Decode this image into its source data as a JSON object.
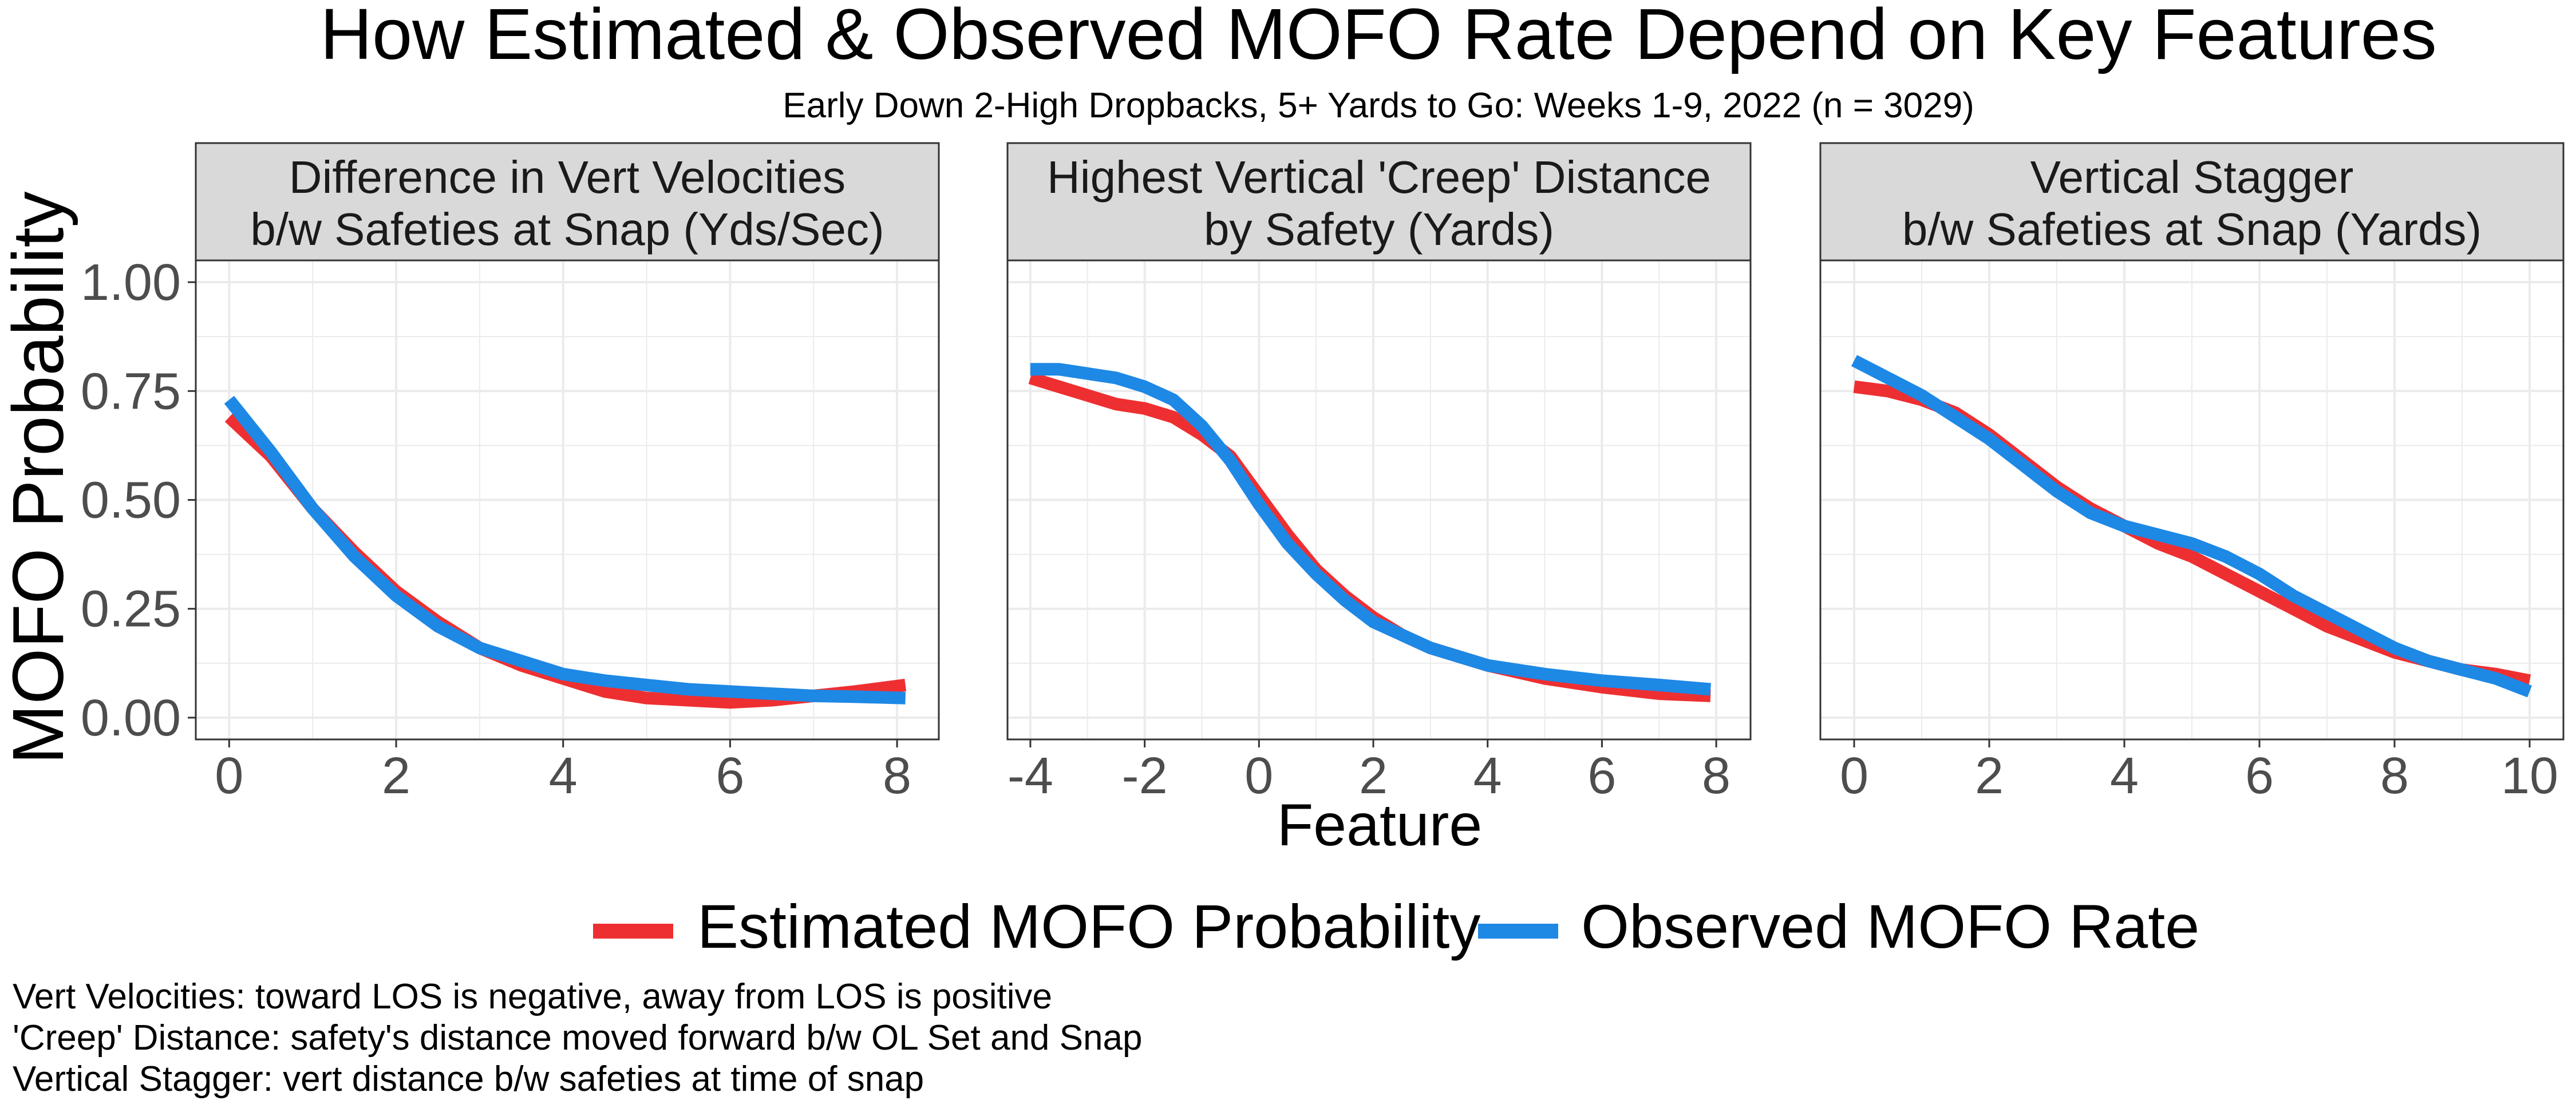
{
  "title": "How Estimated & Observed MOFO Rate Depend on Key Features",
  "subtitle": "Early Down 2-High Dropbacks, 5+ Yards to Go: Weeks 1-9, 2022 (n = 3029)",
  "colors": {
    "estimated": "#ee2f31",
    "observed": "#1e88e5",
    "strip_bg": "#d9d9d9",
    "grid": "#ebebeb",
    "panel_border": "#333333"
  },
  "caption_lines": [
    "Vert Velocities: toward LOS is negative, away from LOS is positive",
    "'Creep' Distance: safety's distance moved forward b/w OL Set and Snap",
    "Vertical Stagger: vert distance b/w safeties at time of snap"
  ],
  "chart_data": {
    "type": "line",
    "facets": [
      {
        "strip_lines": [
          "Difference in Vert Velocities",
          "b/w Safeties at Snap (Yds/Sec)"
        ],
        "xlim": [
          -0.4,
          8.5
        ],
        "x_ticks": [
          0,
          2,
          4,
          6,
          8
        ],
        "x_tick_labels": [
          "0",
          "2",
          "4",
          "6",
          "8"
        ],
        "series": [
          {
            "name": "Estimated MOFO Probability",
            "x": [
              0,
              0.5,
              1,
              1.5,
              2,
              2.5,
              3,
              3.5,
              4,
              4.5,
              5,
              5.5,
              6,
              6.5,
              7,
              7.5,
              8.1
            ],
            "y": [
              0.69,
              0.6,
              0.48,
              0.38,
              0.29,
              0.22,
              0.16,
              0.12,
              0.09,
              0.06,
              0.045,
              0.04,
              0.035,
              0.04,
              0.05,
              0.06,
              0.075
            ]
          },
          {
            "name": "Observed MOFO Rate",
            "x": [
              0,
              0.5,
              1,
              1.5,
              2,
              2.5,
              3,
              3.5,
              4,
              4.5,
              5,
              5.5,
              6,
              6.5,
              7,
              7.5,
              8.1
            ],
            "y": [
              0.73,
              0.61,
              0.48,
              0.37,
              0.28,
              0.21,
              0.16,
              0.13,
              0.1,
              0.085,
              0.075,
              0.065,
              0.06,
              0.055,
              0.05,
              0.048,
              0.045
            ]
          }
        ]
      },
      {
        "strip_lines": [
          "Highest Vertical 'Creep' Distance",
          "by Safety (Yards)"
        ],
        "xlim": [
          -4.4,
          8.6
        ],
        "x_ticks": [
          -4,
          -2,
          0,
          2,
          4,
          6,
          8
        ],
        "x_tick_labels": [
          "-4",
          "-2",
          "0",
          "2",
          "4",
          "6",
          "8"
        ],
        "series": [
          {
            "name": "Estimated MOFO Probability",
            "x": [
              -4,
              -3.5,
              -3,
              -2.5,
              -2,
              -1.5,
              -1,
              -0.5,
              0,
              0.5,
              1,
              1.5,
              2,
              2.5,
              3,
              4,
              5,
              6,
              7,
              7.9
            ],
            "y": [
              0.78,
              0.76,
              0.74,
              0.72,
              0.71,
              0.69,
              0.65,
              0.6,
              0.51,
              0.42,
              0.34,
              0.28,
              0.23,
              0.19,
              0.16,
              0.12,
              0.09,
              0.07,
              0.055,
              0.05
            ]
          },
          {
            "name": "Observed MOFO Rate",
            "x": [
              -4,
              -3.5,
              -3,
              -2.5,
              -2,
              -1.5,
              -1,
              -0.5,
              0,
              0.5,
              1,
              1.5,
              2,
              2.5,
              3,
              4,
              5,
              6,
              7,
              7.9
            ],
            "y": [
              0.8,
              0.8,
              0.79,
              0.78,
              0.76,
              0.73,
              0.67,
              0.59,
              0.49,
              0.4,
              0.33,
              0.27,
              0.22,
              0.19,
              0.16,
              0.12,
              0.1,
              0.085,
              0.075,
              0.065
            ]
          }
        ]
      },
      {
        "strip_lines": [
          "Vertical Stagger",
          "b/w Safeties at Snap (Yards)"
        ],
        "xlim": [
          -0.5,
          10.5
        ],
        "x_ticks": [
          0,
          2,
          4,
          6,
          8,
          10
        ],
        "x_tick_labels": [
          "0",
          "2",
          "4",
          "6",
          "8",
          "10"
        ],
        "series": [
          {
            "name": "Estimated MOFO Probability",
            "x": [
              0,
              0.5,
              1,
              1.5,
              2,
              2.5,
              3,
              3.5,
              4,
              4.5,
              5,
              5.5,
              6,
              6.5,
              7,
              7.5,
              8,
              8.5,
              9,
              9.5,
              10
            ],
            "y": [
              0.76,
              0.75,
              0.73,
              0.7,
              0.65,
              0.59,
              0.53,
              0.48,
              0.44,
              0.4,
              0.37,
              0.33,
              0.29,
              0.25,
              0.21,
              0.18,
              0.15,
              0.13,
              0.11,
              0.1,
              0.085
            ]
          },
          {
            "name": "Observed MOFO Rate",
            "x": [
              0,
              0.5,
              1,
              1.5,
              2,
              2.5,
              3,
              3.5,
              4,
              4.5,
              5,
              5.5,
              6,
              6.5,
              7,
              7.5,
              8,
              8.5,
              9,
              9.5,
              10
            ],
            "y": [
              0.82,
              0.78,
              0.74,
              0.69,
              0.64,
              0.58,
              0.52,
              0.47,
              0.44,
              0.42,
              0.4,
              0.37,
              0.33,
              0.28,
              0.24,
              0.2,
              0.16,
              0.13,
              0.11,
              0.09,
              0.06
            ]
          }
        ]
      }
    ],
    "ylim": [
      -0.05,
      1.05
    ],
    "y_ticks": [
      0,
      0.25,
      0.5,
      0.75,
      1.0
    ],
    "y_tick_labels": [
      "0.00",
      "0.25",
      "0.50",
      "0.75",
      "1.00"
    ],
    "xlabel": "Feature",
    "ylabel": "MOFO Probability",
    "legend": {
      "position": "bottom",
      "entries": [
        "Estimated MOFO Probability",
        "Observed MOFO Rate"
      ]
    },
    "grid": true
  }
}
